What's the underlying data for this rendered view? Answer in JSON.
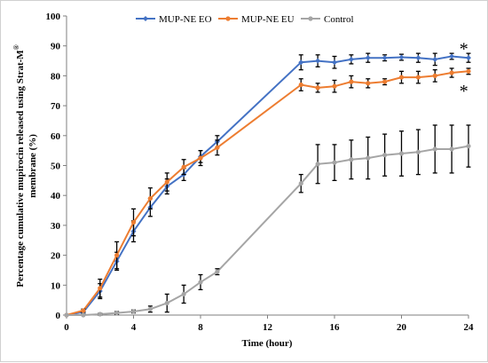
{
  "chart_data": {
    "type": "line",
    "xlabel": "Time (hour)",
    "ylabel": "Percentage cumulative mupirocin released using Strat-M",
    "ylabel_superscript": "®",
    "ylabel_line2": "membrane (%)",
    "xlim": [
      0,
      24
    ],
    "ylim": [
      0,
      100
    ],
    "xticks": [
      0,
      4,
      8,
      12,
      16,
      20,
      24
    ],
    "yticks": [
      0,
      10,
      20,
      30,
      40,
      50,
      60,
      70,
      80,
      90,
      100
    ],
    "grid": false,
    "legend_position": "top",
    "series": [
      {
        "name": "MUP-NE EO",
        "color": "#4472c4",
        "marker": "diamond",
        "x": [
          0,
          1,
          2,
          3,
          4,
          5,
          6,
          7,
          8,
          9,
          14,
          15,
          16,
          17,
          18,
          19,
          20,
          21,
          22,
          23,
          24
        ],
        "y": [
          0,
          1,
          8,
          18,
          28,
          36,
          43,
          47,
          53,
          58,
          84.5,
          85,
          84.5,
          85.5,
          86,
          86,
          86.2,
          86,
          85.5,
          86.5,
          86
        ],
        "err": [
          0,
          0.5,
          2.5,
          3,
          3.5,
          3,
          2.5,
          2,
          2,
          2,
          2.5,
          2,
          2,
          1.5,
          1.5,
          1,
          1,
          1.5,
          2,
          1,
          1.5
        ]
      },
      {
        "name": "MUP-NE EU",
        "color": "#ed7d31",
        "marker": "circle",
        "x": [
          0,
          1,
          2,
          3,
          4,
          5,
          6,
          7,
          8,
          9,
          14,
          15,
          16,
          17,
          18,
          19,
          20,
          21,
          22,
          23,
          24
        ],
        "y": [
          0,
          1.5,
          9,
          20,
          31,
          39,
          44.5,
          49.5,
          52.5,
          56,
          77,
          76,
          76.5,
          78,
          77.5,
          78,
          79.5,
          79.5,
          80,
          81,
          81.5
        ],
        "err": [
          0,
          0.5,
          3,
          4.5,
          4.5,
          3.5,
          3,
          2.5,
          2.5,
          2.5,
          2,
          1.5,
          2,
          2,
          1.5,
          1,
          2,
          2,
          2,
          1.5,
          1
        ]
      },
      {
        "name": "Control",
        "color": "#a5a5a5",
        "marker": "circle",
        "x": [
          0,
          1,
          2,
          3,
          4,
          5,
          6,
          7,
          8,
          9,
          14,
          15,
          16,
          17,
          18,
          19,
          20,
          21,
          22,
          23,
          24
        ],
        "y": [
          0,
          0,
          0.3,
          0.7,
          1.2,
          2,
          4,
          7,
          11,
          14.5,
          44,
          50.5,
          51,
          52,
          52.5,
          53.5,
          54,
          54.5,
          55.5,
          55.5,
          56.5
        ],
        "err": [
          0,
          0,
          0.3,
          0.5,
          0.5,
          1,
          3,
          3,
          2.5,
          1,
          3,
          6.5,
          6,
          6.5,
          7,
          7,
          7.5,
          7.5,
          8,
          8,
          7
        ]
      }
    ],
    "annotations": [
      {
        "text": "*",
        "x": 23.3,
        "y": 90
      },
      {
        "text": "*",
        "x": 23.3,
        "y": 76
      }
    ]
  }
}
